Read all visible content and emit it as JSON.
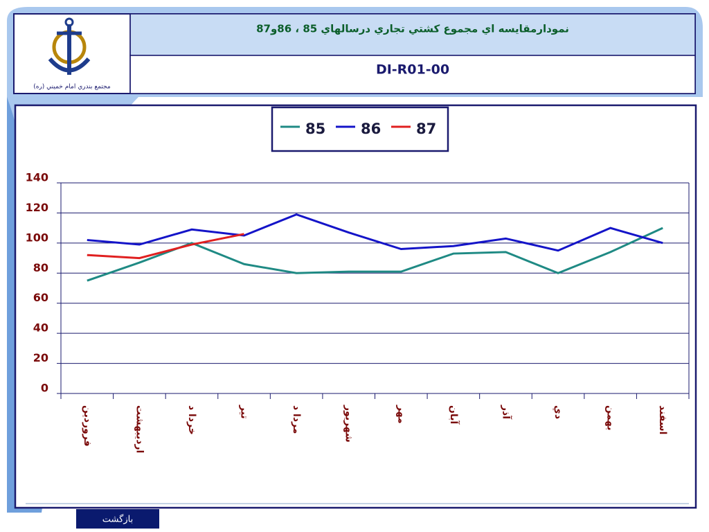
{
  "header": {
    "logo_caption": "مجتمع بندري امام خميني (ره)",
    "code": "DI-R01-00"
  },
  "chart_data": {
    "type": "line",
    "title": "نمودارمقايسه اي مجموع كشتي تجاري  درسالهاي 85 ، 86و87",
    "categories": [
      "فروردين",
      "ارديبهشت",
      "خردا د",
      "تير",
      "مردا د",
      "شهريور",
      "مهر",
      "آبان",
      "آذر",
      "دي",
      "بهمن",
      "اسفند"
    ],
    "series": [
      {
        "name": "85",
        "color": "#1f8a84",
        "values": [
          75,
          87,
          100,
          86,
          80,
          81,
          81,
          93,
          94,
          80,
          94,
          110
        ]
      },
      {
        "name": "86",
        "color": "#1414c8",
        "values": [
          102,
          99,
          109,
          105,
          119,
          107,
          96,
          98,
          103,
          95,
          110,
          100
        ]
      },
      {
        "name": "87",
        "color": "#e02020",
        "values": [
          92,
          90,
          99,
          106,
          null,
          null,
          null,
          null,
          null,
          null,
          null,
          null
        ]
      }
    ],
    "ylim": [
      0,
      140
    ],
    "yticks": [
      0,
      20,
      40,
      60,
      80,
      100,
      120,
      140
    ],
    "grid": true,
    "legend": "top"
  },
  "footer": {
    "button": "بازگشت"
  }
}
